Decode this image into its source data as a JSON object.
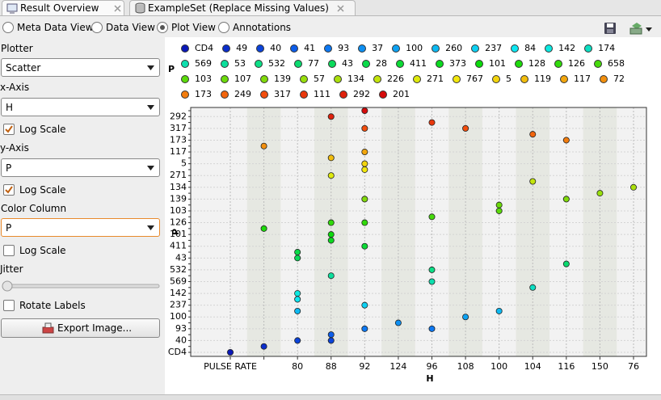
{
  "tabs": [
    "Result Overview",
    "ExampleSet (Replace Missing Values)"
  ],
  "views": [
    "Meta Data View",
    "Data View",
    "Plot View",
    "Annotations"
  ],
  "selected_view": 2,
  "controls": {
    "plotter_label": "Plotter",
    "plotter": "Scatter",
    "x_axis_label": "x-Axis",
    "x_axis": "H",
    "x_log": {
      "label": "Log Scale",
      "checked": true
    },
    "y_axis_label": "y-Axis",
    "y_axis": "P",
    "y_log": {
      "label": "Log Scale",
      "checked": true
    },
    "color_label": "Color Column",
    "color_column": "P",
    "color_log": {
      "label": "Log Scale",
      "checked": false
    },
    "jitter_label": "Jitter",
    "rotate": {
      "label": "Rotate Labels",
      "checked": false
    },
    "export_button": "Export Image..."
  },
  "chart_data": {
    "type": "scatter",
    "x_label": "H",
    "y_label": "P",
    "legend_title": "P",
    "grid": true,
    "categories": [
      "PULSE RATE",
      null,
      "80",
      "88",
      "92",
      "124",
      "96",
      "108",
      "100",
      "104",
      "116",
      "150",
      "76"
    ],
    "y_categories": [
      "CD4",
      null,
      "40",
      null,
      "93",
      null,
      "100",
      null,
      "237",
      null,
      "142",
      null,
      "569",
      null,
      "532",
      null,
      "43",
      null,
      "411",
      null,
      "101",
      null,
      "126",
      null,
      "103",
      null,
      "139",
      null,
      "134",
      null,
      "271",
      null,
      "5",
      null,
      "117",
      null,
      "173",
      null,
      "317",
      null,
      "292",
      null
    ],
    "series": [
      {
        "name": "CD4",
        "color": "hsl(235,90%,38%)",
        "x": [
          0
        ]
      },
      {
        "name": "49",
        "color": "hsl(229,90%,42%)",
        "x": [
          1
        ]
      },
      {
        "name": "40",
        "color": "hsl(224,90%,45%)",
        "x": [
          2,
          3
        ]
      },
      {
        "name": "41",
        "color": "hsl(218,90%,48%)",
        "x": [
          3
        ]
      },
      {
        "name": "93",
        "color": "hsl(212,90%,50%)",
        "x": [
          4,
          6
        ]
      },
      {
        "name": "37",
        "color": "hsl(206,90%,50%)",
        "x": [
          5
        ]
      },
      {
        "name": "100",
        "color": "hsl(201,90%,50%)",
        "x": [
          7
        ]
      },
      {
        "name": "260",
        "color": "hsl(195,90%,50%)",
        "x": [
          2,
          8
        ]
      },
      {
        "name": "237",
        "color": "hsl(189,90%,50%)",
        "x": [
          4
        ]
      },
      {
        "name": "84",
        "color": "hsl(183,90%,50%)",
        "x": [
          2
        ]
      },
      {
        "name": "142",
        "color": "hsl(178,90%,48%)",
        "x": [
          2
        ]
      },
      {
        "name": "174",
        "color": "hsl(172,90%,46%)",
        "x": [
          9
        ]
      },
      {
        "name": "569",
        "color": "hsl(166,90%,46%)",
        "x": [
          6
        ]
      },
      {
        "name": "53",
        "color": "hsl(161,90%,46%)",
        "x": [
          3
        ]
      },
      {
        "name": "532",
        "color": "hsl(155,90%,46%)",
        "x": [
          6
        ]
      },
      {
        "name": "77",
        "color": "hsl(149,90%,45%)",
        "x": [
          10
        ]
      },
      {
        "name": "43",
        "color": "hsl(143,90%,45%)",
        "x": [
          2
        ]
      },
      {
        "name": "28",
        "color": "hsl(138,90%,45%)",
        "x": [
          2
        ]
      },
      {
        "name": "411",
        "color": "hsl(132,90%,45%)",
        "x": [
          4
        ]
      },
      {
        "name": "373",
        "color": "hsl(126,90%,45%)",
        "x": [
          3
        ]
      },
      {
        "name": "101",
        "color": "hsl(120,90%,45%)",
        "x": [
          3
        ]
      },
      {
        "name": "128",
        "color": "hsl(115,90%,45%)",
        "x": [
          1
        ]
      },
      {
        "name": "126",
        "color": "hsl(109,90%,45%)",
        "x": [
          3,
          4
        ]
      },
      {
        "name": "658",
        "color": "hsl(103,90%,45%)",
        "x": [
          6
        ]
      },
      {
        "name": "103",
        "color": "hsl(97,90%,45%)",
        "x": [
          8
        ]
      },
      {
        "name": "107",
        "color": "hsl(92,90%,45%)",
        "x": [
          8
        ]
      },
      {
        "name": "139",
        "color": "hsl(86,90%,45%)",
        "x": [
          4,
          10
        ]
      },
      {
        "name": "57",
        "color": "hsl(80,90%,46%)",
        "x": [
          11
        ]
      },
      {
        "name": "134",
        "color": "hsl(75,90%,46%)",
        "x": [
          12
        ]
      },
      {
        "name": "226",
        "color": "hsl(69,90%,47%)",
        "x": [
          9
        ]
      },
      {
        "name": "271",
        "color": "hsl(63,90%,48%)",
        "x": [
          3
        ]
      },
      {
        "name": "767",
        "color": "hsl(57,90%,50%)",
        "x": [
          4
        ]
      },
      {
        "name": "5",
        "color": "hsl(52,90%,50%)",
        "x": [
          4
        ]
      },
      {
        "name": "119",
        "color": "hsl(46,90%,50%)",
        "x": [
          3
        ]
      },
      {
        "name": "117",
        "color": "hsl(40,90%,50%)",
        "x": [
          4
        ]
      },
      {
        "name": "72",
        "color": "hsl(34,90%,50%)",
        "x": [
          1
        ]
      },
      {
        "name": "173",
        "color": "hsl(29,90%,50%)",
        "x": [
          10
        ]
      },
      {
        "name": "249",
        "color": "hsl(23,90%,50%)",
        "x": [
          9
        ]
      },
      {
        "name": "317",
        "color": "hsl(17,90%,50%)",
        "x": [
          4,
          7
        ]
      },
      {
        "name": "111",
        "color": "hsl(12,90%,48%)",
        "x": [
          6
        ]
      },
      {
        "name": "292",
        "color": "hsl(6,90%,46%)",
        "x": [
          3
        ]
      },
      {
        "name": "201",
        "color": "hsl(0,90%,44%)",
        "x": [
          4
        ]
      }
    ]
  }
}
